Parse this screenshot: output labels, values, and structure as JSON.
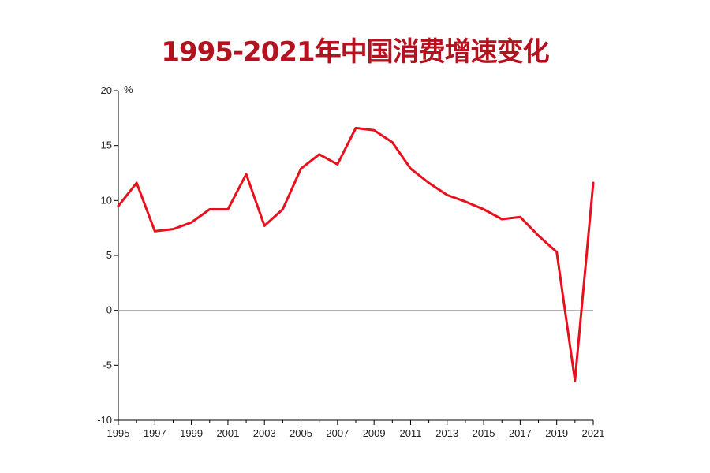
{
  "chart_data": {
    "type": "line",
    "title": "1995-2021年中国消费增速变化",
    "unit": "%",
    "xlabel": "",
    "ylabel": "",
    "ylim": [
      -10,
      20
    ],
    "yticks": [
      -10,
      -5,
      0,
      5,
      10,
      15,
      20
    ],
    "xlim": [
      1995,
      2021
    ],
    "xtick_labels": [
      "1995",
      "1997",
      "1999",
      "2001",
      "2003",
      "2005",
      "2007",
      "2009",
      "2011",
      "2013",
      "2015",
      "2017",
      "2019",
      "2021"
    ],
    "grid": false,
    "zero_line": true,
    "series": [
      {
        "color": "#e8101c",
        "x": [
          1995,
          1996,
          1997,
          1998,
          1999,
          2000,
          2001,
          2002,
          2003,
          2004,
          2005,
          2006,
          2007,
          2008,
          2009,
          2010,
          2011,
          2012,
          2013,
          2014,
          2015,
          2016,
          2017,
          2018,
          2019,
          2020,
          2021
        ],
        "values": [
          9.5,
          11.6,
          7.2,
          7.4,
          8.0,
          9.2,
          9.2,
          12.4,
          7.7,
          9.2,
          12.9,
          14.2,
          13.3,
          16.6,
          16.4,
          15.3,
          12.9,
          11.6,
          10.5,
          9.9,
          9.2,
          8.3,
          8.5,
          6.8,
          5.3,
          -6.4,
          11.6
        ]
      }
    ],
    "zero_line_color": "#aaaaaa"
  }
}
